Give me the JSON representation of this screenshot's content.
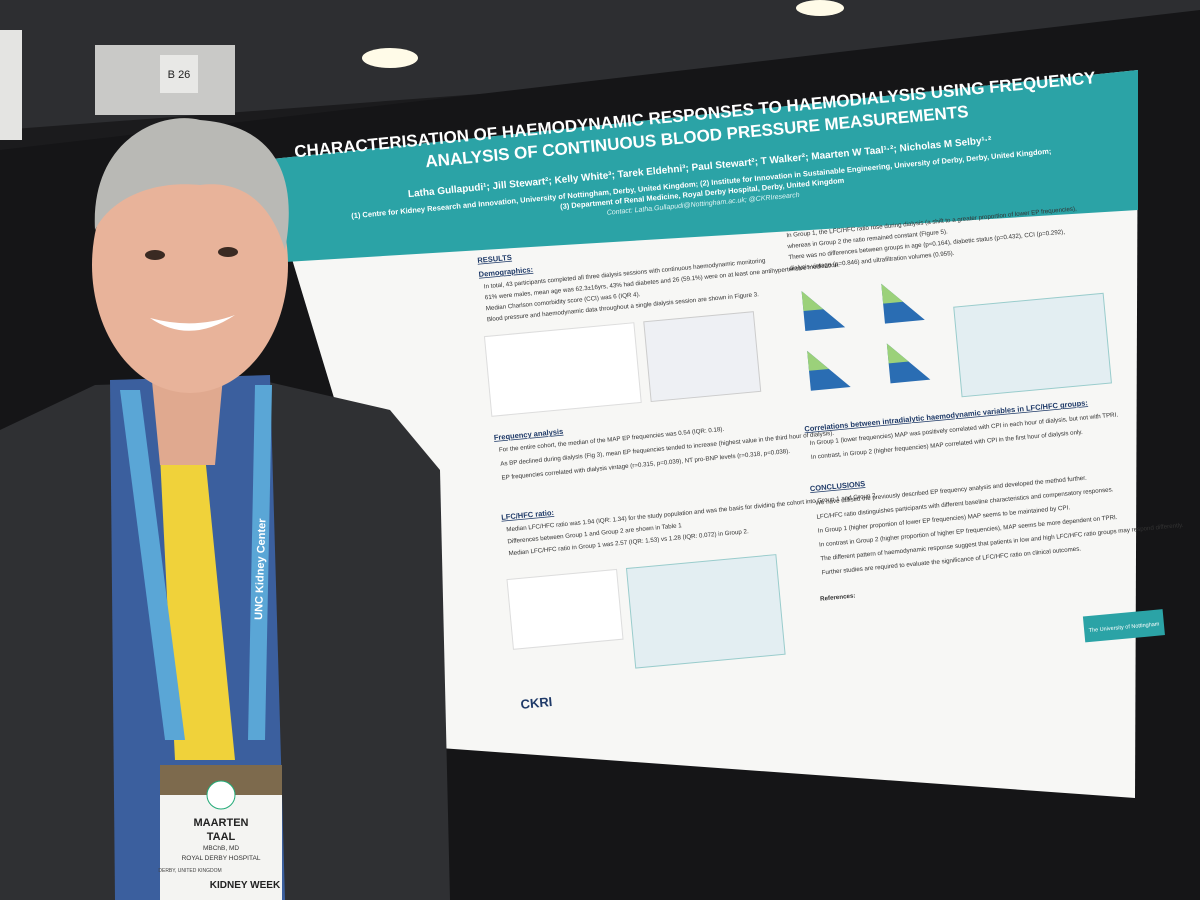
{
  "booth": "B 26",
  "poster": {
    "title_line_1": "CHARACTERISATION OF HAEMODYNAMIC RESPONSES TO HAEMODIALYSIS USING FREQUENCY",
    "title_line_2": "ANALYSIS OF CONTINUOUS BLOOD PRESSURE MEASUREMENTS",
    "authors": "Latha Gullapudi¹; Jill Stewart²; Kelly White³; Tarek Eldehni³; Paul Stewart²; T Walker²; Maarten W Taal¹·²; Nicholas M Selby¹·²",
    "affiliation_1": "(1) Centre for Kidney Research and Innovation, University of Nottingham, Derby, United Kingdom; (2) Institute for Innovation in Sustainable Engineering, University of Derby, Derby, United Kingdom;",
    "affiliation_2": "(3) Department of Renal Medicine, Royal Derby Hospital, Derby, United Kingdom",
    "contact": "Contact: Latha.Gullapudi@Nottingham.ac.uk; @CKRIresearch",
    "results_heading": "RESULTS",
    "demographics_heading": "Demographics:",
    "demographics": [
      "In total, 43 participants completed all three dialysis sessions with continuous haemodynamic monitoring",
      "61% were males, mean age was 62.3±16yrs, 43% had diabetes and 26 (59.1%) were on at least one antihypertensive medication.",
      "Median Charlson comorbidity score (CCI) was 6 (IQR 4).",
      "Blood pressure and haemodynamic data throughout a single dialysis session are shown in Figure 3."
    ],
    "frequency_heading": "Frequency analysis",
    "frequency": [
      "For the entire cohort, the median of the MAP EP frequencies was 0.54 (IQR: 0.18).",
      "As BP declined during dialysis (Fig 3), mean EP frequencies tended to increase (highest value in the third hour of dialysis).",
      "EP frequencies correlated with dialysis vintage (r=0.315, p=0.039), NT pro-BNP levels (r=0.318, p=0.038)."
    ],
    "ratio_heading": "LFC/HFC ratio:",
    "ratio": [
      "Median LFC/HFC ratio was 1.94 (IQR: 1.34) for the study population and was the basis for dividing the cohort into Group 1 and Group 2.",
      "Differences between Group 1 and Group 2 are shown in Table 1",
      "Median LFC/HFC ratio in Group 1 was 2.57 (IQR: 1.53) vs 1.28 (IQR: 0.072) in Group 2."
    ],
    "right_top": [
      "In Group 1, the LFC/HFC ratio rose during dialysis (a shift to a greater proportion of lower EP frequencies),",
      "whereas in Group 2 the ratio remained constant (Figure 5).",
      "There was no differences between groups in age (p=0.164), diabetic status (p=0.432), CCI (p=0.292),",
      "dialysis vintage (p=0.846) and ultrafiltration volumes (0.955)."
    ],
    "correlations_heading": "Correlations between intradialytic haemodynamic variables in LFC/HFC groups:",
    "correlations": [
      "In Group 1 (lower frequencies) MAP was positively correlated with CPI in each hour of dialysis, but not with TPRI.",
      "In contrast, in Group 2 (higher frequencies) MAP correlated with CPI in the first hour of dialysis only."
    ],
    "conclusions_heading": "CONCLUSIONS",
    "conclusions": [
      "We have utilised the previously described EP frequency analysis and developed the method further.",
      "LFC/HFC ratio distinguishes participants with different baseline characteristics and compensatory responses.",
      "In Group 1 (higher proportion of lower EP frequencies) MAP seems to be maintained by CPI.",
      "In contrast in Group 2 (higher proportion of higher EP frequencies), MAP seems be more dependent on TPRI.",
      "The different pattern of haemodynamic response suggest that patients in low and high LFC/HFC ratio groups may respond differently.",
      "Further studies are required to evaluate the significance of LFC/HFC ratio on clinical outcomes."
    ],
    "references_heading": "References:",
    "logo_left": "CKRI",
    "logo_right": "The University of Nottingham"
  },
  "lanyard": "UNC Kidney Center",
  "badge": {
    "first_name": "MAARTEN",
    "last_name": "TAAL",
    "degrees": "MBChB, MD",
    "organisation": "ROYAL DERBY HOSPITAL",
    "location": "DERBY, UNITED KINGDOM",
    "event": "KIDNEY WEEK"
  }
}
